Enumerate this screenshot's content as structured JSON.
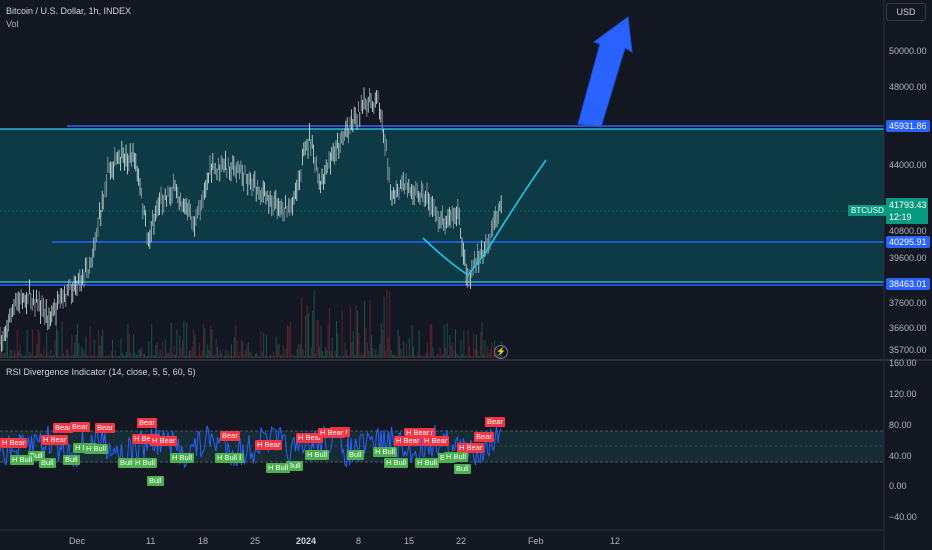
{
  "header": {
    "title": "Bitcoin / U.S. Dollar, 1h, INDEX",
    "vol_label": "Vol",
    "currency_button": "USD"
  },
  "price_axis": {
    "ticks": [
      "50000.00",
      "48000.00",
      "44000.00",
      "40800.00",
      "39600.00",
      "37600.00",
      "36600.00",
      "35700.00"
    ]
  },
  "price_labels": {
    "upper": "45931.86",
    "mid": "40295.91",
    "lower": "38463.01",
    "symbol": "BTCUSD",
    "current": "41793.43",
    "countdown": "12:19"
  },
  "rsi": {
    "title": "RSI Divergence Indicator (14, close, 5, 5, 60, 5)",
    "ticks": [
      "160.00",
      "120.00",
      "80.00",
      "40.00",
      "0.00",
      "−40.00"
    ]
  },
  "time_axis": {
    "labels": [
      "Dec",
      "11",
      "18",
      "25",
      "2024",
      "8",
      "15",
      "22",
      "Feb",
      "12"
    ]
  },
  "signals": {
    "bear": "Bear",
    "h_bear": "H Bear",
    "bull": "Bull",
    "h_bull": "H Bull"
  },
  "colors": {
    "background": "#131722",
    "zone_fill": "#0d3a45",
    "level_line": "#2962ff",
    "zone_edge": "#29b6d6",
    "projection": "#22c3e6",
    "arrow": "#2962ff",
    "up_candle": "#b2e0d6",
    "rsi_line": "#2962ff",
    "bear": "#f23645",
    "bull": "#4caf50"
  },
  "icons": {
    "replay": "lightning-icon"
  }
}
